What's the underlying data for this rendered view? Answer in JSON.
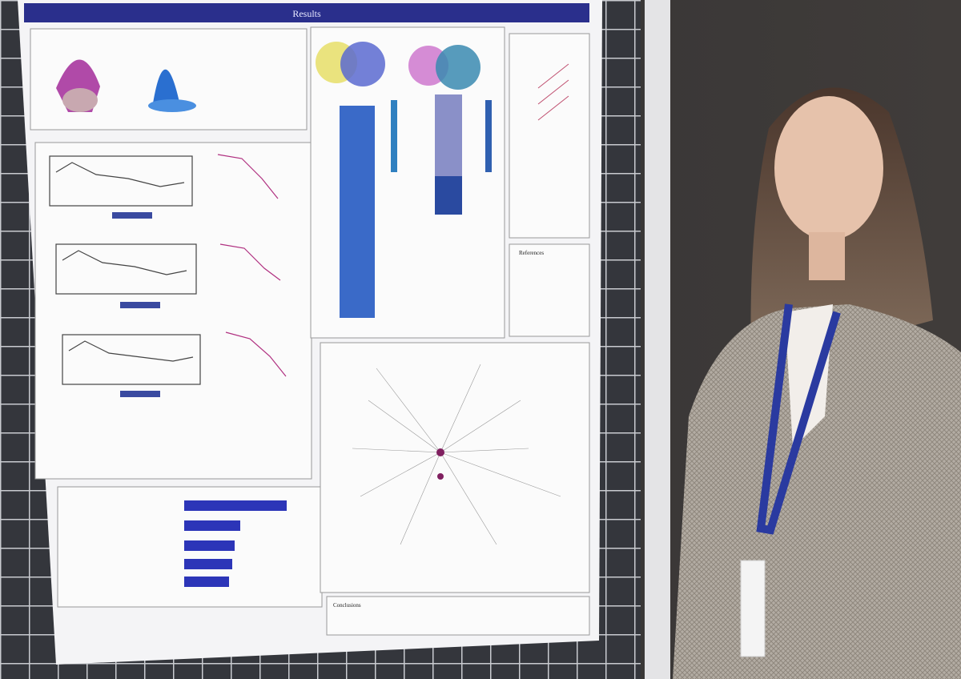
{
  "poster": {
    "section_title": "Results",
    "conclusions_heading": "Conclusions",
    "references_heading": "References"
  }
}
